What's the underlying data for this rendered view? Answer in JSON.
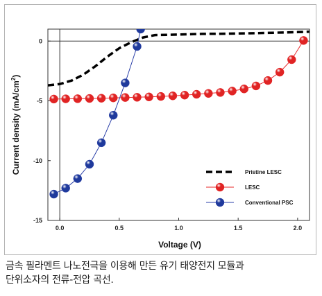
{
  "chart_data": {
    "type": "line",
    "title": "",
    "xlabel": "Voltage (V)",
    "ylabel": "Current density (mA/cm",
    "ylabel_sup": "2",
    "ylabel_suffix": ")",
    "xlim": [
      -0.1,
      2.1
    ],
    "ylim": [
      -15,
      1
    ],
    "xticks": [
      0.0,
      0.5,
      1.0,
      1.5,
      2.0
    ],
    "xtick_labels": [
      "0.0",
      "0.5",
      "1.0",
      "1.5",
      "2.0"
    ],
    "yticks": [
      0,
      -5,
      -10,
      -15
    ],
    "ytick_labels": [
      "0",
      "-5",
      "-10",
      "-15"
    ],
    "grid": false,
    "legend_position": "lower-right",
    "reference_lines": {
      "vertical_at_x": 0,
      "horizontal_at_y": 0
    },
    "series": [
      {
        "name": "Pristine LESC",
        "style": "dashed",
        "color": "#000000",
        "x": [
          -0.1,
          0.0,
          0.1,
          0.2,
          0.3,
          0.4,
          0.5,
          0.6,
          0.7,
          0.8,
          1.0,
          1.2,
          1.4,
          1.6,
          1.8,
          2.0,
          2.1
        ],
        "y": [
          -3.7,
          -3.6,
          -3.3,
          -2.8,
          -2.1,
          -1.3,
          -0.6,
          -0.1,
          0.3,
          0.5,
          0.55,
          0.6,
          0.62,
          0.65,
          0.7,
          0.75,
          0.78
        ]
      },
      {
        "name": "LESC",
        "style": "line-marker",
        "color": "#e8282a",
        "x": [
          -0.05,
          0.05,
          0.15,
          0.25,
          0.35,
          0.45,
          0.55,
          0.65,
          0.75,
          0.85,
          0.95,
          1.05,
          1.15,
          1.25,
          1.35,
          1.45,
          1.55,
          1.65,
          1.75,
          1.85,
          1.95,
          2.05
        ],
        "y": [
          -4.85,
          -4.83,
          -4.82,
          -4.8,
          -4.78,
          -4.75,
          -4.72,
          -4.7,
          -4.67,
          -4.63,
          -4.58,
          -4.52,
          -4.45,
          -4.38,
          -4.3,
          -4.18,
          -4.0,
          -3.75,
          -3.3,
          -2.6,
          -1.55,
          0.05
        ]
      },
      {
        "name": "Conventional PSC",
        "style": "line-marker",
        "color": "#2a3fa8",
        "x": [
          -0.05,
          0.05,
          0.15,
          0.25,
          0.35,
          0.45,
          0.55,
          0.65,
          0.68
        ],
        "y": [
          -12.8,
          -12.3,
          -11.5,
          -10.3,
          -8.5,
          -6.2,
          -3.5,
          -0.45,
          1.0
        ]
      }
    ]
  },
  "caption": {
    "line1": "금속 필라멘트 나노전극을 이용해 만든 유기 태양전지 모듈과",
    "line2": "단위소자의 전류-전압 곡선."
  }
}
